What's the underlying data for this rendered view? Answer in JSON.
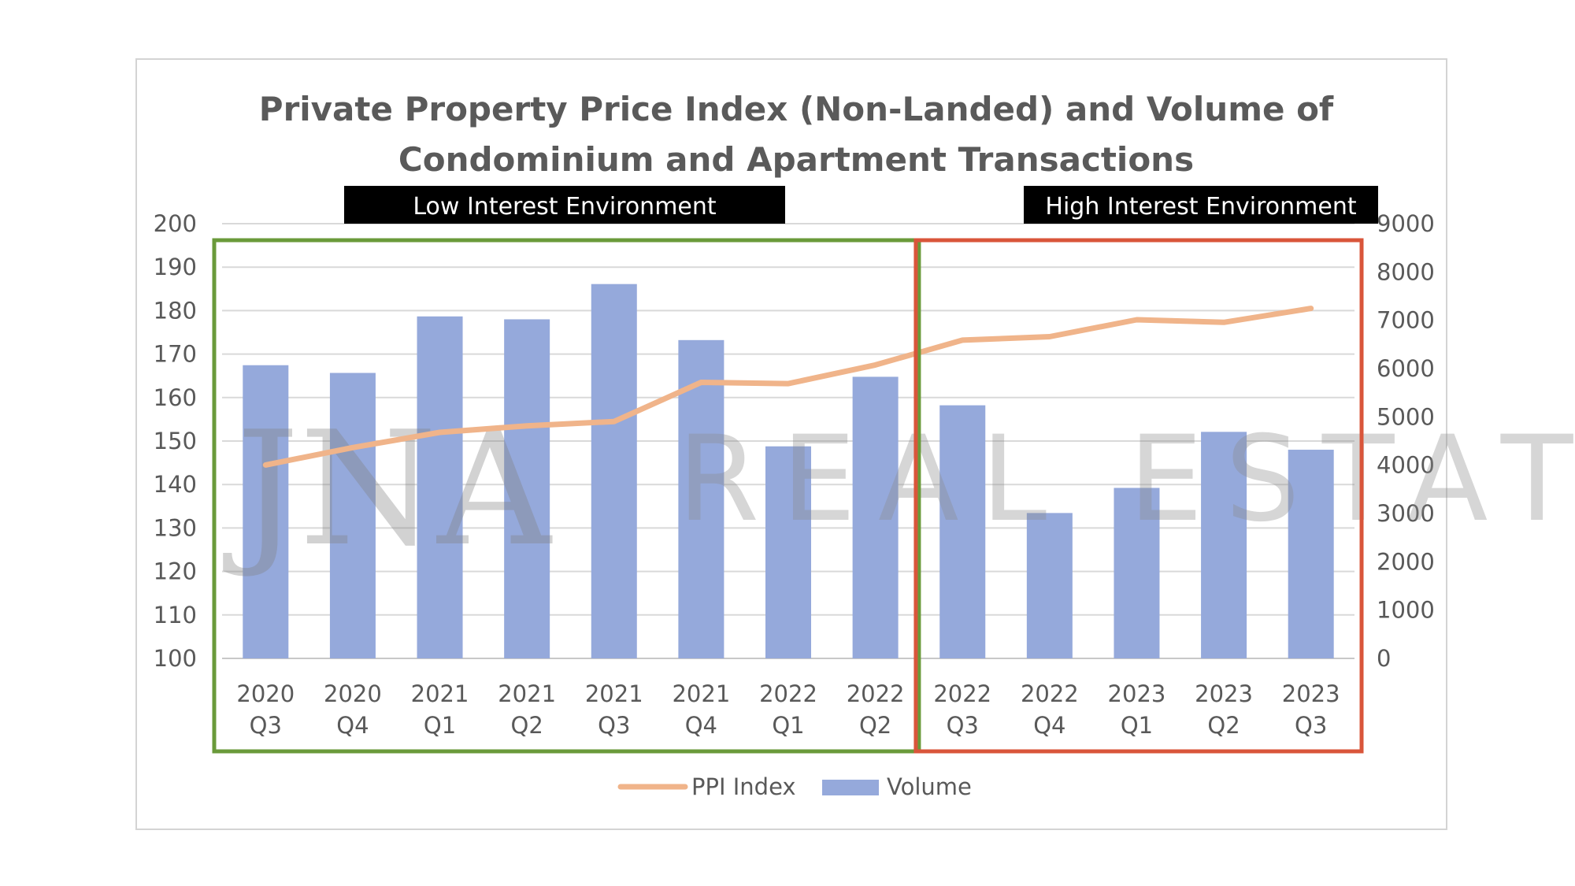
{
  "chart_data": {
    "type": "bar+line",
    "title_lines": [
      "Private Property Price Index (Non-Landed) and Volume of",
      "Condominium and Apartment Transactions"
    ],
    "categories": [
      [
        "2020",
        "Q3"
      ],
      [
        "2020",
        "Q4"
      ],
      [
        "2021",
        "Q1"
      ],
      [
        "2021",
        "Q2"
      ],
      [
        "2021",
        "Q3"
      ],
      [
        "2021",
        "Q4"
      ],
      [
        "2022",
        "Q1"
      ],
      [
        "2022",
        "Q2"
      ],
      [
        "2022",
        "Q3"
      ],
      [
        "2022",
        "Q4"
      ],
      [
        "2023",
        "Q1"
      ],
      [
        "2023",
        "Q2"
      ],
      [
        "2023",
        "Q3"
      ]
    ],
    "series": [
      {
        "name": "Volume",
        "type": "bar",
        "axis": "right",
        "color": "#95a9db",
        "values": [
          6070,
          5910,
          7080,
          7020,
          7750,
          6590,
          4390,
          5830,
          5240,
          3010,
          3530,
          4690,
          4320
        ]
      },
      {
        "name": "PPI Index",
        "type": "line",
        "axis": "left",
        "color": "#f0b48a",
        "values": [
          144.5,
          148.5,
          152,
          153.5,
          154.5,
          163.5,
          163.2,
          167.5,
          173.2,
          174,
          177.9,
          177.3,
          180.5
        ]
      }
    ],
    "y_left": {
      "min": 100,
      "max": 200,
      "step": 10,
      "ticks": [
        "100",
        "110",
        "120",
        "130",
        "140",
        "150",
        "160",
        "170",
        "180",
        "190",
        "200"
      ]
    },
    "y_right": {
      "min": 0,
      "max": 9000,
      "step": 1000,
      "ticks": [
        "0",
        "1000",
        "2000",
        "3000",
        "4000",
        "5000",
        "6000",
        "7000",
        "8000",
        "9000"
      ]
    },
    "legend": [
      {
        "name": "PPI Index",
        "color": "#f0b48a",
        "kind": "line"
      },
      {
        "name": "Volume",
        "color": "#95a9db",
        "kind": "bar"
      }
    ],
    "legend_position": "bottom",
    "gridlines": true,
    "annotations": [
      {
        "label": "Low Interest Environment",
        "color": "#6a9a3a",
        "from": 0,
        "to": 7
      },
      {
        "label": "High Interest Environment",
        "color": "#d9553a",
        "from": 8,
        "to": 12
      }
    ],
    "watermark": "REAL ESTATE"
  }
}
